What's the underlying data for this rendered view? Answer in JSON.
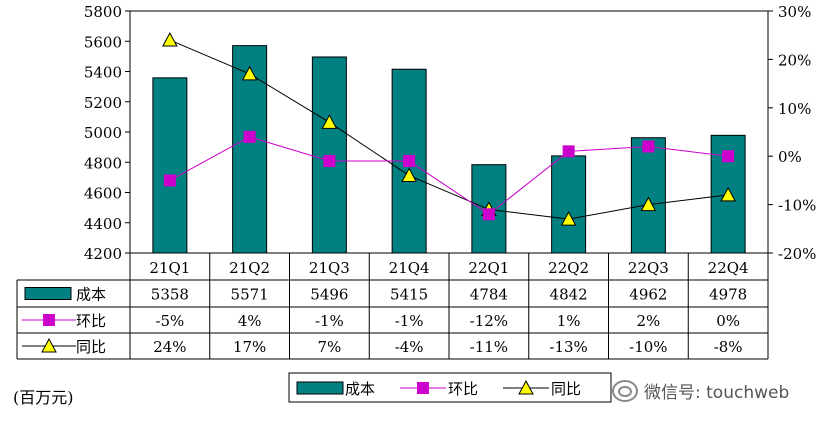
{
  "chart_data": {
    "type": "bar+line",
    "categories": [
      "21Q1",
      "21Q2",
      "21Q3",
      "21Q4",
      "22Q1",
      "22Q2",
      "22Q3",
      "22Q4"
    ],
    "series": [
      {
        "name": "成本",
        "kind": "bar",
        "axis": "left",
        "color": "#008080",
        "values": [
          5358,
          5571,
          5496,
          5415,
          4784,
          4842,
          4962,
          4978
        ]
      },
      {
        "name": "环比",
        "kind": "line",
        "axis": "right",
        "color": "#cc00cc",
        "marker": "square",
        "values": [
          -5,
          4,
          -1,
          -1,
          -12,
          1,
          2,
          0
        ]
      },
      {
        "name": "同比",
        "kind": "line",
        "axis": "right",
        "color": "#000000",
        "marker": "triangle",
        "markerColor": "#ffff00",
        "values": [
          24,
          17,
          7,
          -4,
          -11,
          -13,
          -10,
          -8
        ]
      }
    ],
    "table_rows": [
      {
        "label": "成本",
        "cells": [
          "5358",
          "5571",
          "5496",
          "5415",
          "4784",
          "4842",
          "4962",
          "4978"
        ]
      },
      {
        "label": "环比",
        "cells": [
          "-5%",
          "4%",
          "-1%",
          "-1%",
          "-12%",
          "1%",
          "2%",
          "0%"
        ]
      },
      {
        "label": "同比",
        "cells": [
          "24%",
          "17%",
          "7%",
          "-4%",
          "-11%",
          "-13%",
          "-10%",
          "-8%"
        ]
      }
    ],
    "left_axis": {
      "min": 4200,
      "max": 5800,
      "step": 200,
      "ticks": [
        "4200",
        "4400",
        "4600",
        "4800",
        "5000",
        "5200",
        "5400",
        "5600",
        "5800"
      ]
    },
    "right_axis": {
      "min": -20,
      "max": 30,
      "step": 10,
      "ticks": [
        "-20%",
        "-10%",
        "0%",
        "10%",
        "20%",
        "30%"
      ]
    },
    "legend": [
      "成本",
      "环比",
      "同比"
    ],
    "unit_label": "(百万元)"
  },
  "watermark": "微信号: touchweb"
}
